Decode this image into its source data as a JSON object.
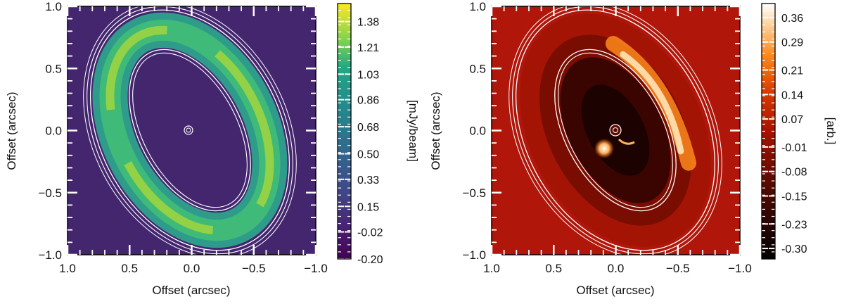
{
  "chart_data": [
    {
      "type": "heatmap",
      "title": "",
      "colormap": "viridis",
      "xlabel": "Offset (arcsec)",
      "ylabel": "Offset (arcsec)",
      "xlim": [
        1.0,
        -1.0
      ],
      "ylim": [
        -1.0,
        1.0
      ],
      "xticks": [
        "1.0",
        "0.5",
        "0.0",
        "−0.5",
        "−1.0"
      ],
      "yticks": [
        "−1.0",
        "−0.5",
        "0.0",
        "0.5",
        "1.0"
      ],
      "colorbar_label": "[mJy/beam]",
      "colorbar_ticks": [
        "-0.20",
        "-0.02",
        "0.15",
        "0.33",
        "0.50",
        "0.68",
        "0.86",
        "1.03",
        "1.21",
        "1.38"
      ],
      "colorbar_range": [
        -0.2,
        1.5
      ],
      "background_color": "#44266f",
      "ring_colors": [
        "#2f9c8b",
        "#3fba78",
        "#93d146"
      ]
    },
    {
      "type": "heatmap",
      "title": "",
      "colormap": "gist_heat",
      "xlabel": "Offset (arcsec)",
      "ylabel": "Offset (arcsec)",
      "xlim": [
        1.0,
        -1.0
      ],
      "ylim": [
        -1.0,
        1.0
      ],
      "xticks": [
        "1.0",
        "0.5",
        "0.0",
        "−0.5",
        "−1.0"
      ],
      "yticks": [
        "−1.0",
        "−0.5",
        "0.0",
        "0.5",
        "1.0"
      ],
      "colorbar_label": "[arb.]",
      "colorbar_ticks": [
        "-0.30",
        "-0.23",
        "-0.15",
        "-0.08",
        "-0.01",
        "0.07",
        "0.14",
        "0.21",
        "0.29",
        "0.36"
      ],
      "colorbar_range": [
        -0.33,
        0.4
      ],
      "background_color": "#b0160a",
      "ring_colors": [
        "#ff8a1c",
        "#ffd9a6",
        "#ffffff"
      ]
    }
  ]
}
